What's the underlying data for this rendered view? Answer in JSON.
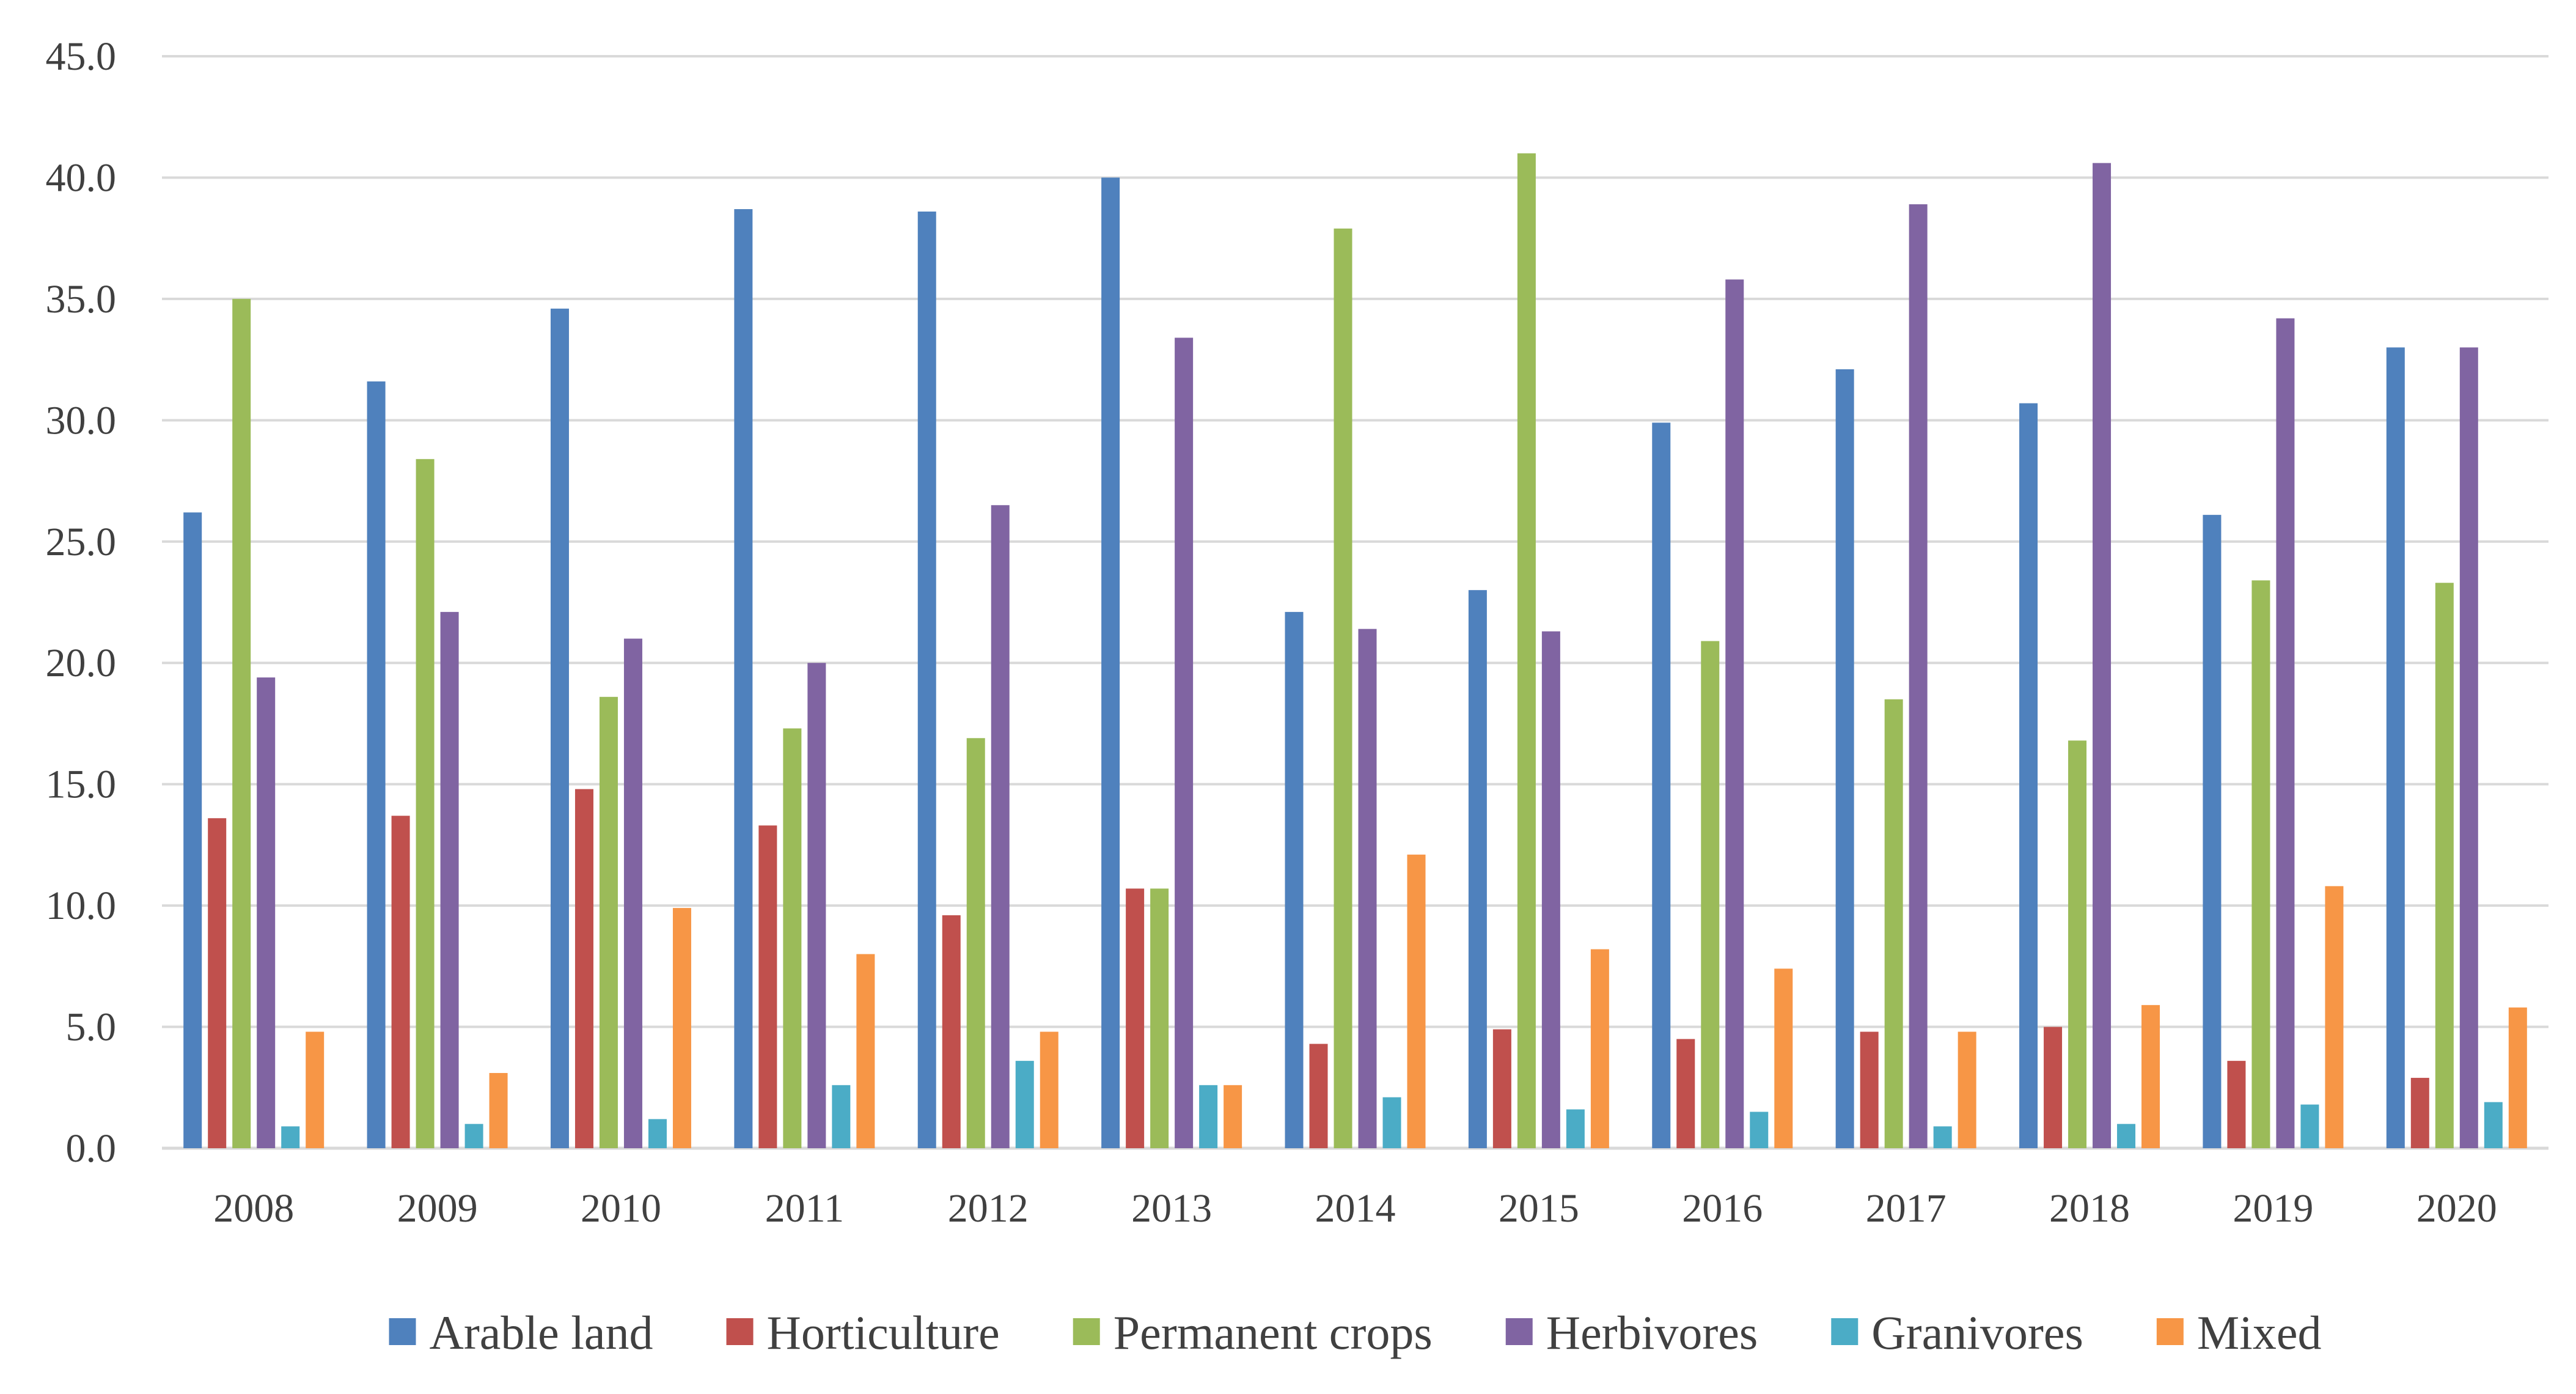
{
  "chart_data": {
    "type": "bar",
    "title": "",
    "xlabel": "",
    "ylabel": "",
    "ylim": [
      0,
      45
    ],
    "ytick_step": 5,
    "ytick_format_decimals": 1,
    "grid": true,
    "legend_position": "bottom",
    "categories": [
      "2008",
      "2009",
      "2010",
      "2011",
      "2012",
      "2013",
      "2014",
      "2015",
      "2016",
      "2017",
      "2018",
      "2019",
      "2020"
    ],
    "series": [
      {
        "name": "Arable land",
        "color": "#4f81bd",
        "values": [
          26.2,
          31.6,
          34.6,
          38.7,
          38.6,
          40.0,
          22.1,
          23.0,
          29.9,
          32.1,
          30.7,
          26.1,
          33.0
        ]
      },
      {
        "name": "Horticulture",
        "color": "#c0504d",
        "values": [
          13.6,
          13.7,
          14.8,
          13.3,
          9.6,
          10.7,
          4.3,
          4.9,
          4.5,
          4.8,
          5.0,
          3.6,
          2.9
        ]
      },
      {
        "name": "Permanent crops",
        "color": "#9bbb59",
        "values": [
          35.0,
          28.4,
          18.6,
          17.3,
          16.9,
          10.7,
          37.9,
          41.0,
          20.9,
          18.5,
          16.8,
          23.4,
          23.3
        ]
      },
      {
        "name": "Herbivores",
        "color": "#8064a2",
        "values": [
          19.4,
          22.1,
          21.0,
          20.0,
          26.5,
          33.4,
          21.4,
          21.3,
          35.8,
          38.9,
          40.6,
          34.2,
          33.0
        ]
      },
      {
        "name": "Granivores",
        "color": "#4bacc6",
        "values": [
          0.9,
          1.0,
          1.2,
          2.6,
          3.6,
          2.6,
          2.1,
          1.6,
          1.5,
          0.9,
          1.0,
          1.8,
          1.9
        ]
      },
      {
        "name": "Mixed",
        "color": "#f79646",
        "values": [
          4.8,
          3.1,
          9.9,
          8.0,
          4.8,
          2.6,
          12.1,
          8.2,
          7.4,
          4.8,
          5.9,
          10.8,
          5.8
        ]
      }
    ]
  }
}
